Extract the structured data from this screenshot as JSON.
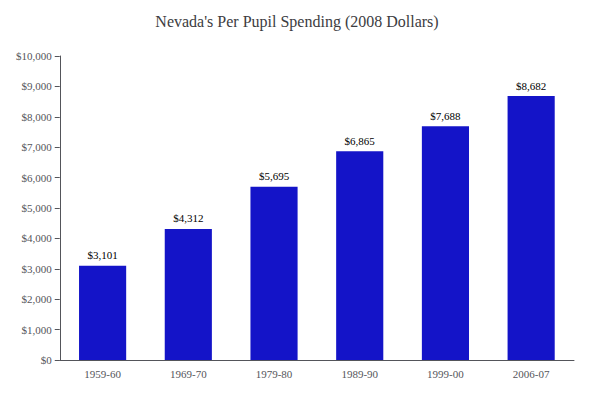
{
  "chart_data": {
    "type": "bar",
    "title": "Nevada's Per Pupil Spending (2008 Dollars)",
    "categories": [
      "1959-60",
      "1969-70",
      "1979-80",
      "1989-90",
      "1999-00",
      "2006-07"
    ],
    "values": [
      3101,
      4312,
      5695,
      6865,
      7688,
      8682
    ],
    "value_labels": [
      "$3,101",
      "$4,312",
      "$5,695",
      "$6,865",
      "$7,688",
      "$8,682"
    ],
    "color": "#1414c8",
    "ylim": [
      0,
      10000
    ],
    "yticks": [
      {
        "value": 0,
        "label": "$0"
      },
      {
        "value": 1000,
        "label": "$1,000"
      },
      {
        "value": 2000,
        "label": "$2,000"
      },
      {
        "value": 3000,
        "label": "$3,000"
      },
      {
        "value": 4000,
        "label": "$4,000"
      },
      {
        "value": 5000,
        "label": "$5,000"
      },
      {
        "value": 6000,
        "label": "$6,000"
      },
      {
        "value": 7000,
        "label": "$7,000"
      },
      {
        "value": 8000,
        "label": "$8,000"
      },
      {
        "value": 9000,
        "label": "$9,000"
      },
      {
        "value": 10000,
        "label": "$10,000"
      }
    ],
    "grid": false,
    "data_labels": true
  }
}
